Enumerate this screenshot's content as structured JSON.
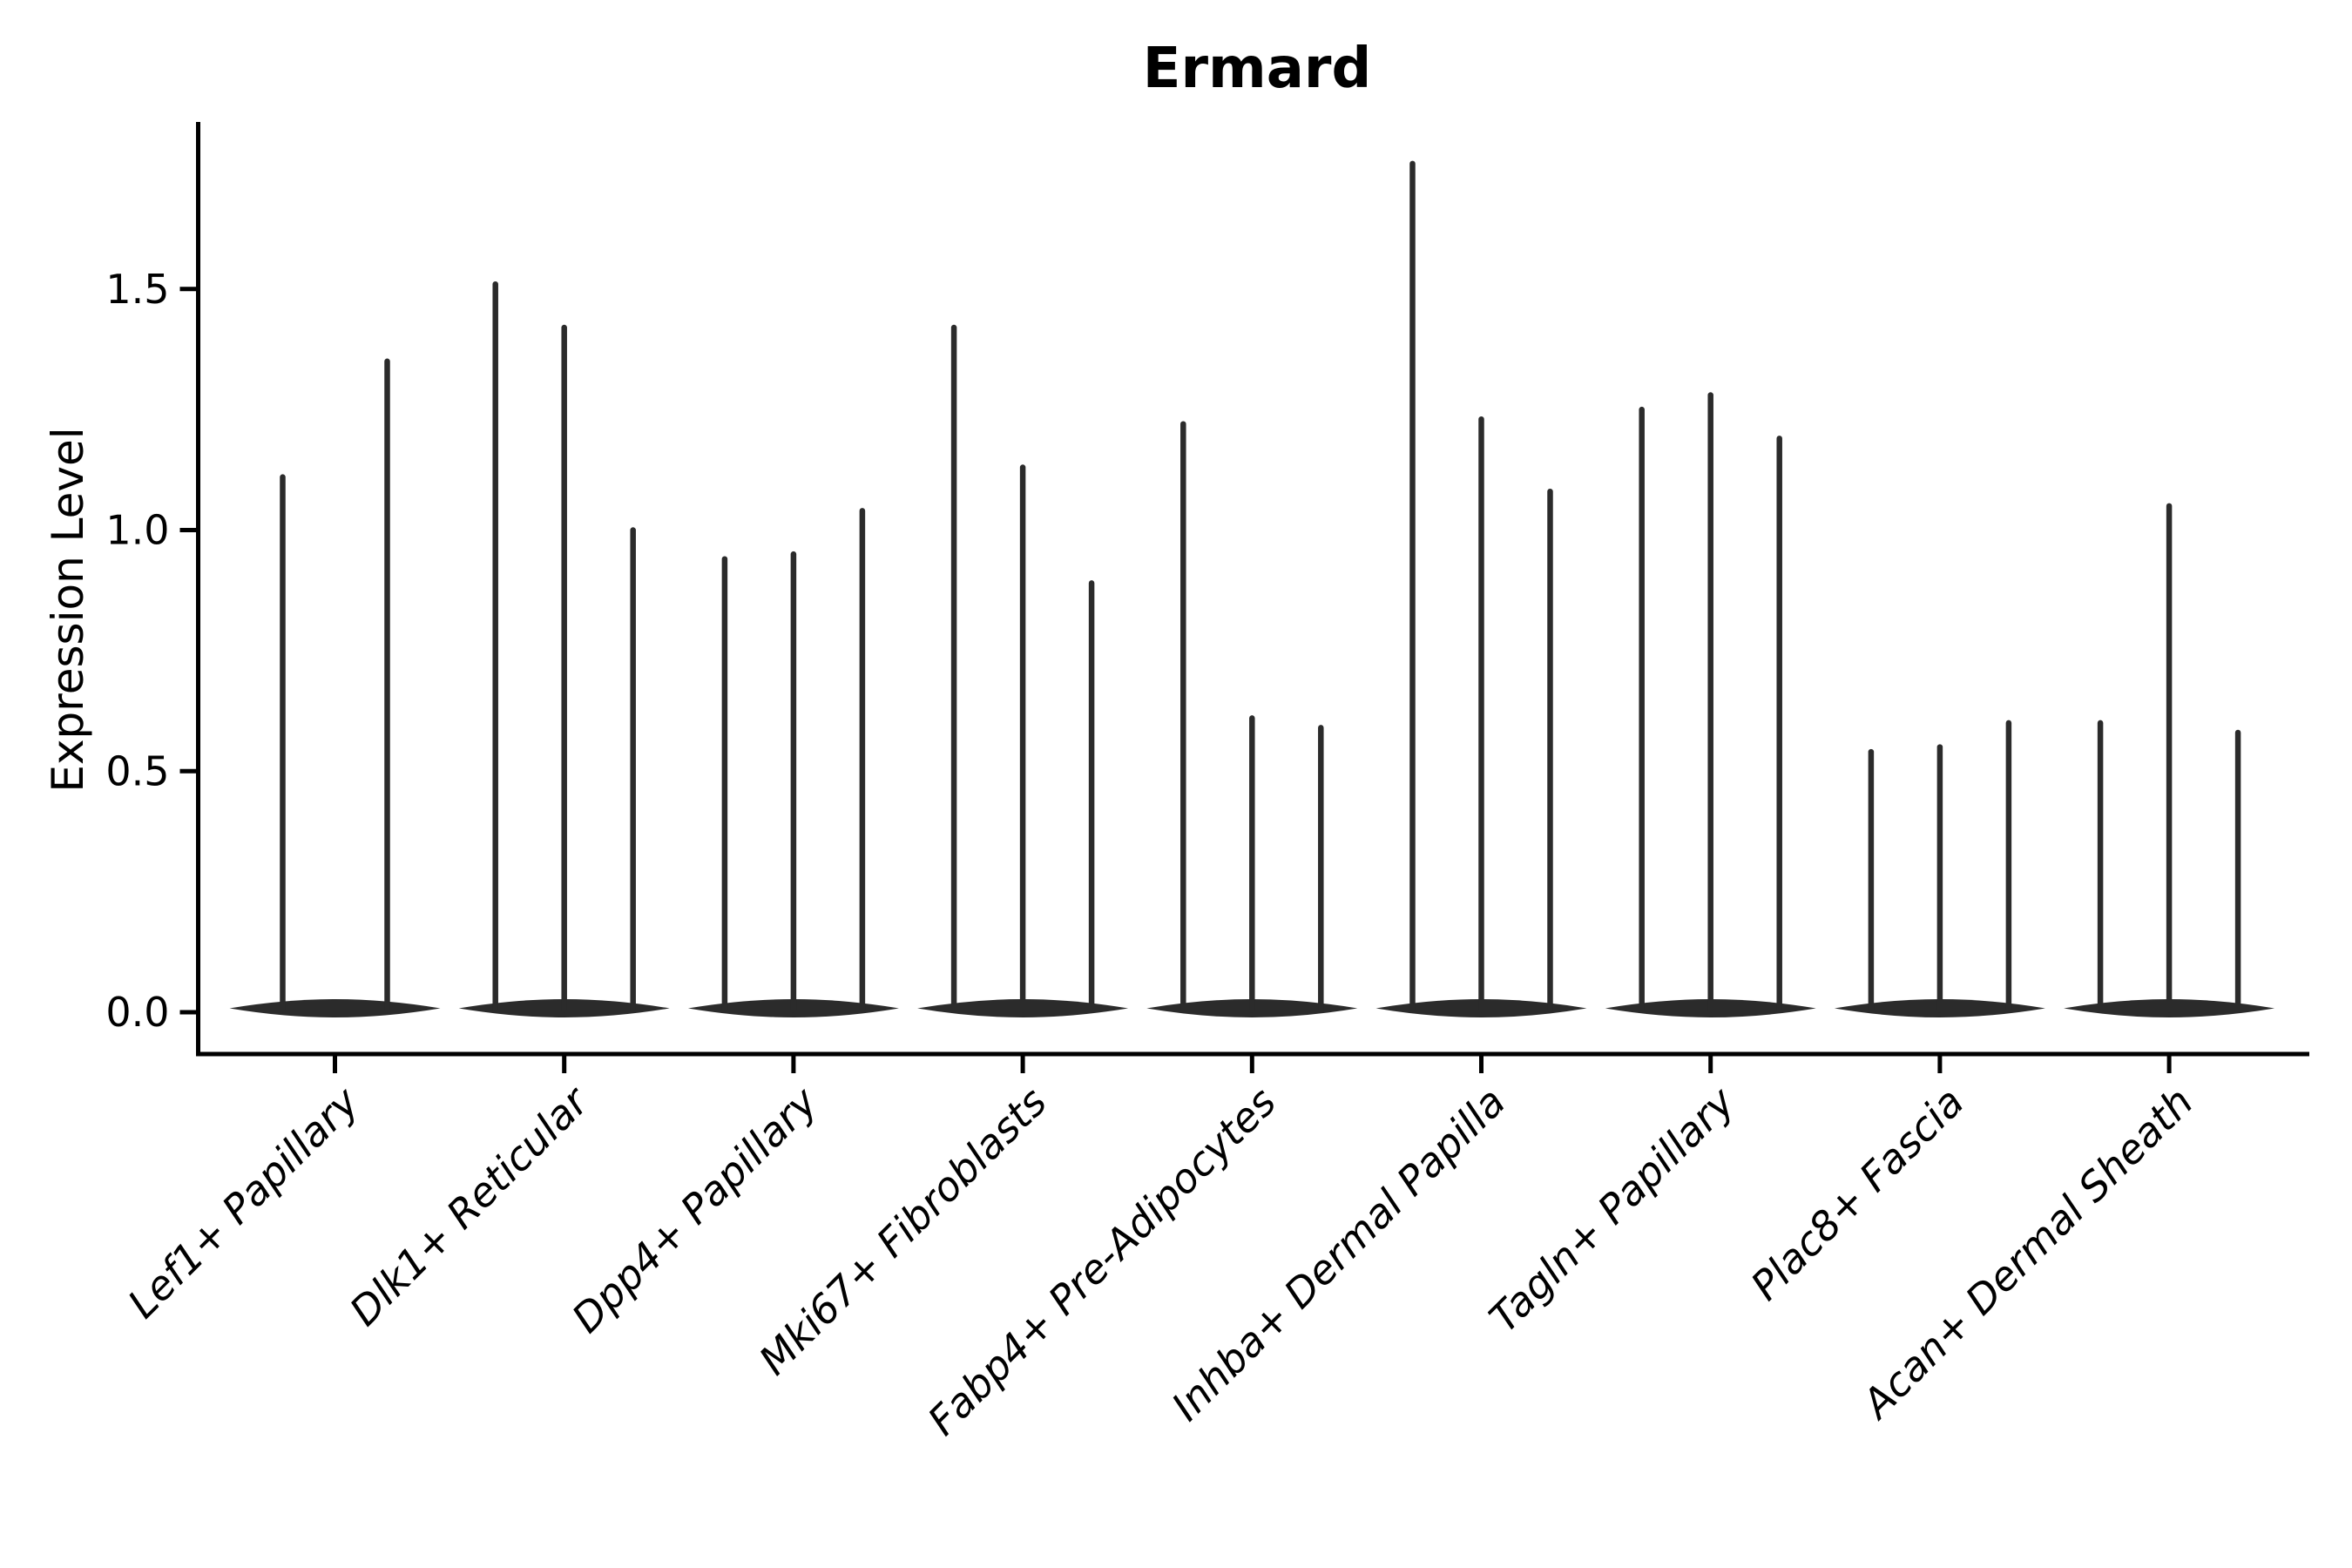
{
  "title": "Ermard",
  "chart_data": {
    "type": "violin",
    "title": "Ermard",
    "xlabel": "",
    "ylabel": "Expression Level",
    "ylim": [
      -0.087,
      1.846
    ],
    "grid": false,
    "legend": "none",
    "yticks": [
      0.0,
      0.5,
      1.0,
      1.5
    ],
    "ytick_labels": [
      "0.0",
      "0.5",
      "1.0",
      "1.5"
    ],
    "categories": [
      "Lef1+ Papillary",
      "Dlk1+ Reticular",
      "Dpp4+ Papillary",
      "Mki67+ Fibroblasts",
      "Fabp4+ Pre-Adipocytes",
      "Inhba+ Dermal Papilla",
      "Tagln+ Papillary",
      "Plac8+ Fascia",
      "Acan+ Dermal Sheath"
    ],
    "groups": [
      {
        "label": "Lef1+ Papillary",
        "violin_peaks": [
          1.11,
          1.35
        ]
      },
      {
        "label": "Dlk1+ Reticular",
        "violin_peaks": [
          1.51,
          1.42,
          1.0
        ]
      },
      {
        "label": "Dpp4+ Papillary",
        "violin_peaks": [
          0.94,
          0.95,
          1.04
        ]
      },
      {
        "label": "Mki67+ Fibroblasts",
        "violin_peaks": [
          1.42,
          1.13,
          0.89
        ]
      },
      {
        "label": "Fabp4+ Pre-Adipocytes",
        "violin_peaks": [
          1.22,
          0.61,
          0.59
        ]
      },
      {
        "label": "Inhba+ Dermal Papilla",
        "violin_peaks": [
          1.76,
          1.23,
          1.08
        ]
      },
      {
        "label": "Tagln+ Papillary",
        "violin_peaks": [
          1.25,
          1.28,
          1.19
        ]
      },
      {
        "label": "Plac8+ Fascia",
        "violin_peaks": [
          0.54,
          0.55,
          0.6
        ]
      },
      {
        "label": "Acan+ Dermal Sheath",
        "violin_peaks": [
          0.6,
          1.05,
          0.58
        ]
      }
    ],
    "violin_baseline_value": 0.0,
    "description": "Needle-shaped violins: bulk of distribution at 0 with a thin spike to each peak value"
  },
  "colors": {
    "violin": "#2b2b2b",
    "axis": "#000000",
    "text": "#000000",
    "background": "#ffffff"
  }
}
